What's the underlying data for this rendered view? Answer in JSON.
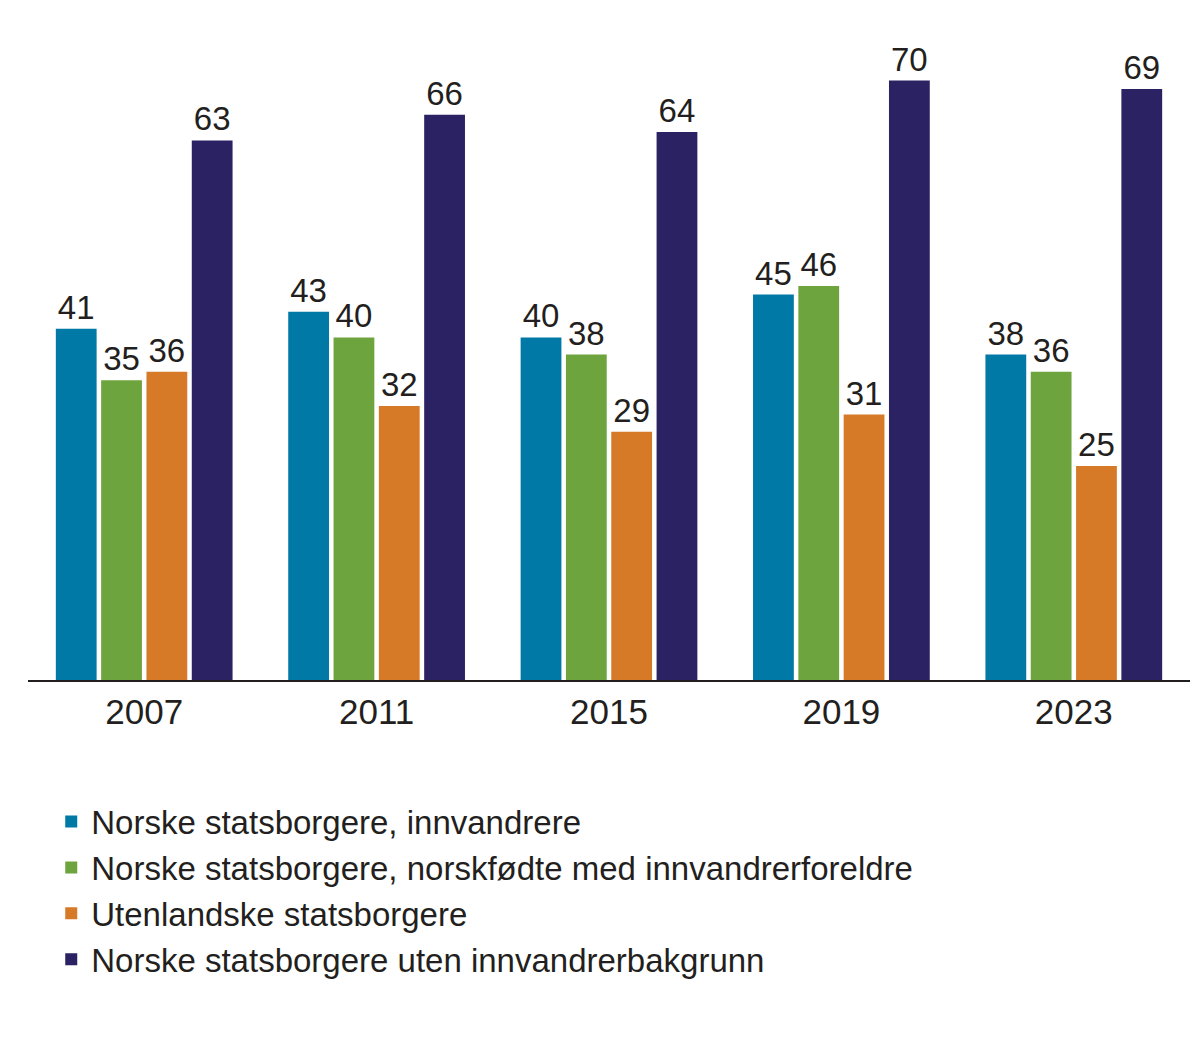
{
  "chart_data": {
    "type": "bar",
    "categories": [
      "2007",
      "2011",
      "2015",
      "2019",
      "2023"
    ],
    "series": [
      {
        "name": "Norske statsborgere, innvandrere",
        "color": "#0079a6",
        "values": [
          41,
          43,
          40,
          45,
          38
        ]
      },
      {
        "name": "Norske statsborgere, norskfødte med innvandrerforeldre",
        "color": "#6ea43d",
        "values": [
          35,
          40,
          38,
          46,
          36
        ]
      },
      {
        "name": "Utenlandske statsborgere",
        "color": "#d67a27",
        "values": [
          36,
          32,
          29,
          31,
          25
        ]
      },
      {
        "name": "Norske statsborgere uten innvandrerbakgrunn",
        "color": "#2a2262",
        "values": [
          63,
          66,
          64,
          70,
          69
        ]
      }
    ],
    "ylim": [
      0,
      78
    ],
    "grid": false,
    "legend": "bottom",
    "data_labels": true,
    "tick_labels": "x"
  }
}
